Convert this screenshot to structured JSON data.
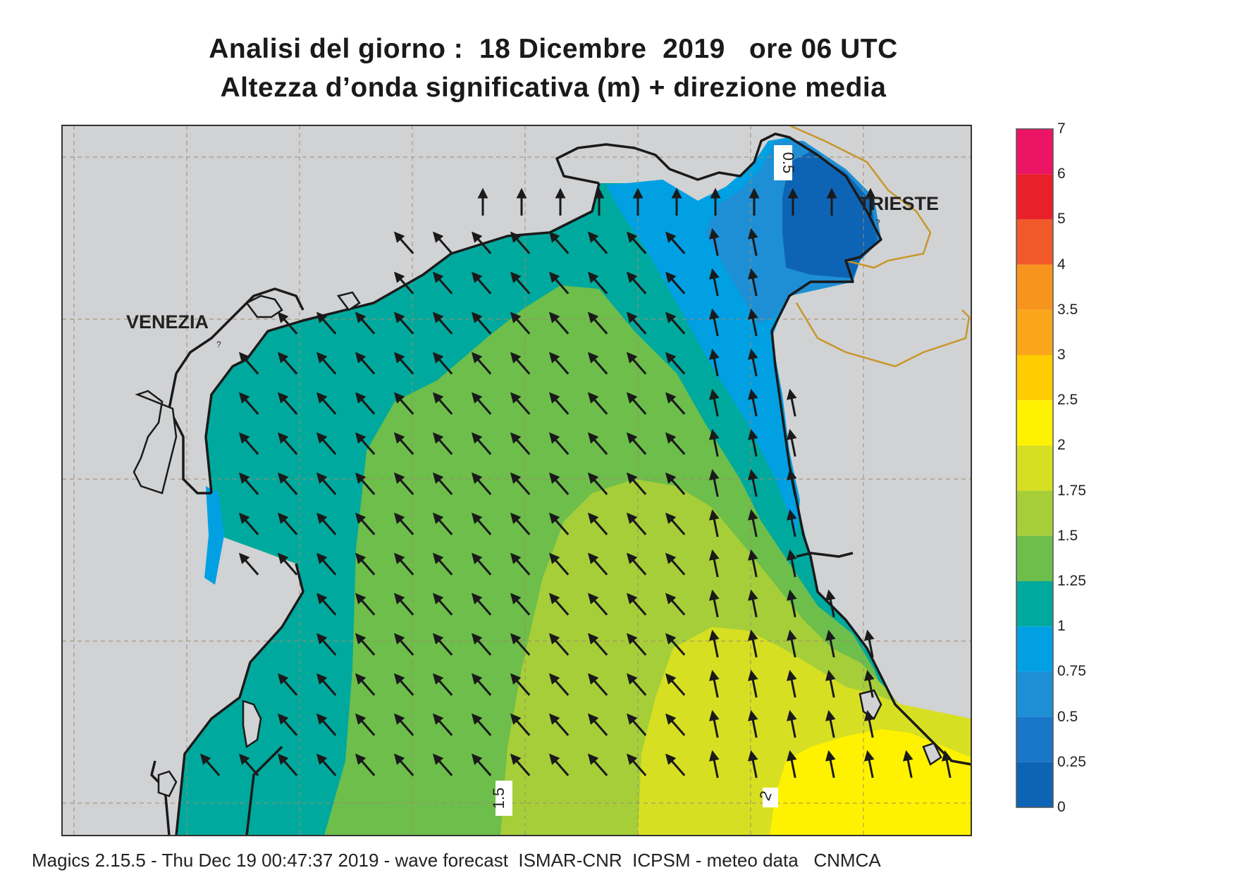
{
  "title_line1": "Analisi del giorno :  18 Dicembre  2019   ore 06 UTC",
  "title_line2": "Altezza d’onda significativa (m) + direzione media",
  "cities": {
    "venezia": "VENEZIA",
    "trieste": "TRIESTE"
  },
  "contour_labels": {
    "c05": "0.5",
    "c15": "1.5",
    "c2": "2"
  },
  "legend": [
    {
      "label": "7",
      "color": "#ec1464"
    },
    {
      "label": "6",
      "color": "#e8202a"
    },
    {
      "label": "5",
      "color": "#f1592a"
    },
    {
      "label": "4",
      "color": "#f7941d"
    },
    {
      "label": "3.5",
      "color": "#faa61a"
    },
    {
      "label": "3",
      "color": "#ffcc00"
    },
    {
      "label": "2.5",
      "color": "#fff200"
    },
    {
      "label": "2",
      "color": "#d7df23"
    },
    {
      "label": "1.75",
      "color": "#a6ce39"
    },
    {
      "label": "1.5",
      "color": "#6dbe4b"
    },
    {
      "label": "1.25",
      "color": "#00a99d"
    },
    {
      "label": "1",
      "color": "#00a0e3"
    },
    {
      "label": "0.75",
      "color": "#1e8fd5"
    },
    {
      "label": "0.5",
      "color": "#1976c8"
    },
    {
      "label": "0.25",
      "color": "#0e64b4"
    },
    {
      "label": "0",
      "color": ""
    }
  ],
  "land_color": "#d1d2d4",
  "footer": "Magics 2.15.5 - Thu Dec 19 00:47:37 2019 - wave forecast  ISMAR-CNR  ICPSM - meteo data   CNMCA"
}
